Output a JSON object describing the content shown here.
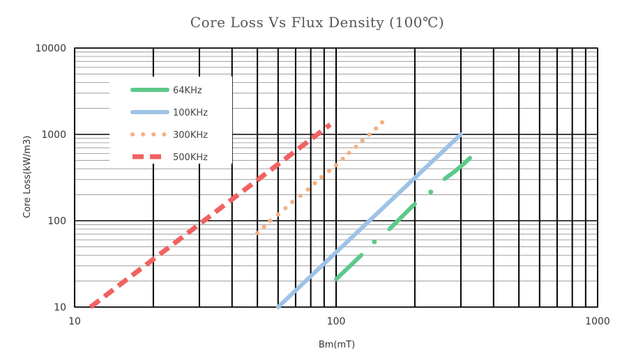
{
  "chart_data": {
    "type": "line",
    "title": "Core Loss Vs Flux Density (100℃)",
    "xlabel": "Bm(mT)",
    "ylabel": "Core Loss(kW/m3)",
    "xscale": "log",
    "yscale": "log",
    "xlim": [
      10,
      1000
    ],
    "ylim": [
      10,
      10000
    ],
    "x_ticks": [
      "10",
      "100",
      "1000"
    ],
    "y_ticks": [
      "10",
      "100",
      "1000",
      "10000"
    ],
    "grid": true,
    "legend_position": "top-left",
    "series": [
      {
        "name": "64KHz",
        "color": "#5cc98a",
        "style": "solid",
        "segments": [
          [
            [
              100,
              21
            ],
            [
              125,
              40
            ]
          ],
          [
            [
              140,
              57
            ]
          ],
          [
            [
              160,
              80
            ],
            [
              200,
              157
            ]
          ],
          [
            [
              230,
              215
            ]
          ],
          [
            [
              260,
              305
            ],
            [
              285,
              375
            ],
            [
              310,
              465
            ],
            [
              325,
              535
            ]
          ]
        ]
      },
      {
        "name": "100KHz",
        "color": "#9dc3e6",
        "style": "solid",
        "segments": [
          [
            [
              60,
              10
            ],
            [
              300,
              1000
            ]
          ]
        ]
      },
      {
        "name": "300KHz",
        "color": "#f4b183",
        "style": "dotted",
        "points": [
          [
            50,
            72
          ],
          [
            53,
            85
          ],
          [
            56,
            100
          ],
          [
            60,
            118
          ],
          [
            64,
            140
          ],
          [
            68,
            165
          ],
          [
            73,
            195
          ],
          [
            78,
            230
          ],
          [
            83,
            272
          ],
          [
            88,
            320
          ],
          [
            94,
            378
          ],
          [
            100,
            440
          ],
          [
            106,
            520
          ],
          [
            112,
            610
          ],
          [
            119,
            720
          ],
          [
            126,
            845
          ],
          [
            134,
            995
          ],
          [
            142,
            1170
          ],
          [
            150,
            1380
          ]
        ]
      },
      {
        "name": "500KHz",
        "color": "#f06262",
        "style": "dashed",
        "segments": [
          [
            [
              11.5,
              10
            ],
            [
              95,
              1300
            ]
          ]
        ]
      }
    ]
  }
}
